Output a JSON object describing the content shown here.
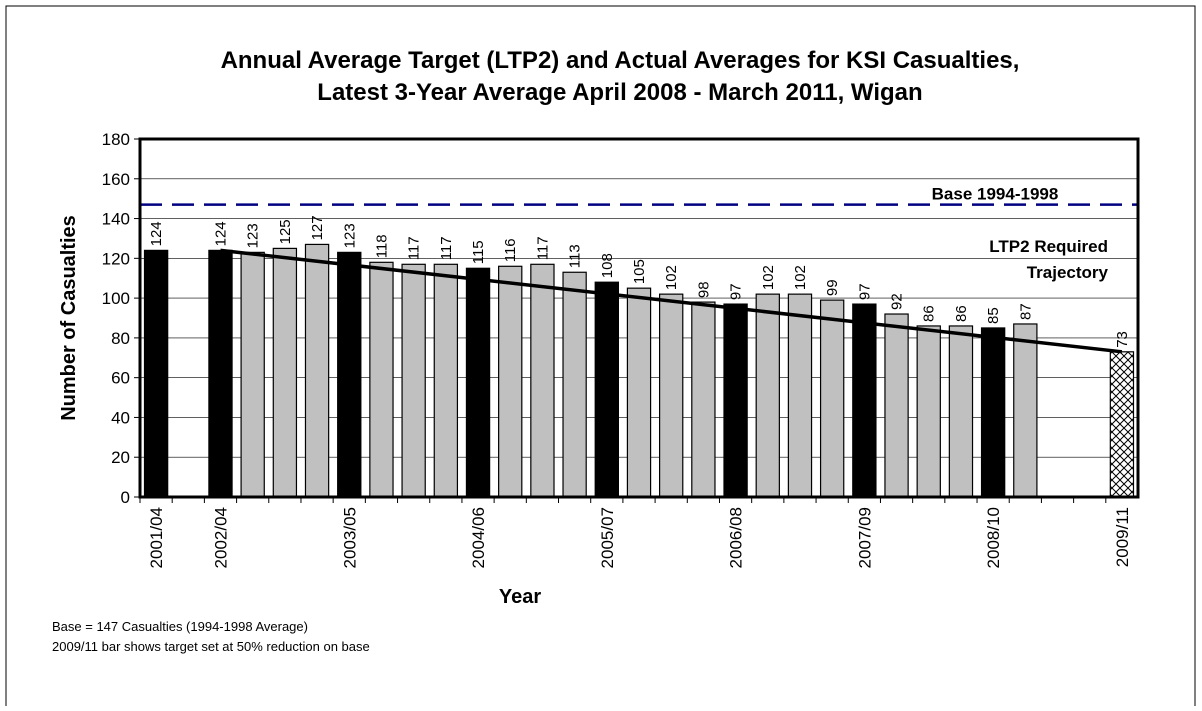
{
  "chart_data": {
    "type": "bar",
    "title_lines": [
      "Annual Average Target (LTP2) and Actual Averages for KSI Casualties,",
      "Latest 3-Year Average April 2008 - March 2011, Wigan"
    ],
    "x_label": "Year",
    "y_label": "Number of Casualties",
    "categories": [
      "2001/04",
      null,
      "2002/04",
      null,
      null,
      null,
      "2003/05",
      null,
      null,
      null,
      "2004/06",
      null,
      null,
      null,
      "2005/07",
      null,
      null,
      null,
      "2006/08",
      null,
      null,
      null,
      "2007/09",
      null,
      null,
      null,
      "2008/10",
      null,
      null,
      null,
      "2009/11"
    ],
    "values": [
      124,
      null,
      124,
      123,
      125,
      127,
      123,
      118,
      117,
      117,
      115,
      116,
      117,
      113,
      108,
      105,
      102,
      98,
      97,
      102,
      102,
      99,
      97,
      92,
      86,
      86,
      85,
      87,
      null,
      null,
      73
    ],
    "bar_fill": [
      "black",
      null,
      "black",
      "gray",
      "gray",
      "gray",
      "black",
      "gray",
      "gray",
      "gray",
      "black",
      "gray",
      "gray",
      "gray",
      "black",
      "gray",
      "gray",
      "gray",
      "black",
      "gray",
      "gray",
      "gray",
      "black",
      "gray",
      "gray",
      "gray",
      "black",
      "gray",
      null,
      null,
      "crosshatch"
    ],
    "ylim": [
      0,
      180
    ],
    "yticks": [
      0,
      20,
      40,
      60,
      80,
      100,
      120,
      140,
      160,
      180
    ],
    "grid": true,
    "reference_line": {
      "label": "Base 1994-1998",
      "value": 147,
      "color": "#000080"
    },
    "trajectory": {
      "label_lines": [
        "LTP2 Required",
        "Trajectory"
      ],
      "x": [
        "2002/04",
        "2009/11"
      ],
      "values": [
        124,
        73
      ],
      "color": "#000000"
    },
    "notes": [
      "Base = 147 Casualties (1994-1998 Average)",
      "2009/11 bar shows target set at 50% reduction on base"
    ]
  }
}
